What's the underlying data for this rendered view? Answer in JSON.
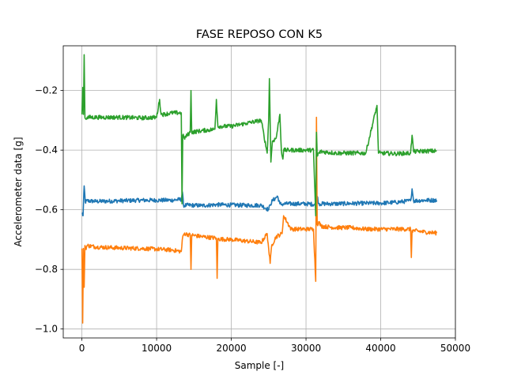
{
  "chart_data": {
    "type": "line",
    "title": "FASE REPOSO CON K5",
    "xlabel": "Sample [-]",
    "ylabel": "Accelerometer data [g]",
    "xlim": [
      -2500,
      50000
    ],
    "ylim": [
      -1.03,
      -0.05
    ],
    "grid": true,
    "x_ticks": [
      0,
      10000,
      20000,
      30000,
      40000,
      50000
    ],
    "x_tick_labels": [
      "0",
      "10000",
      "20000",
      "30000",
      "40000",
      "50000"
    ],
    "y_ticks": [
      -1.0,
      -0.8,
      -0.6,
      -0.4,
      -0.2
    ],
    "y_tick_labels": [
      "−1.0",
      "−0.8",
      "−0.6",
      "−0.4",
      "−0.2"
    ],
    "series": [
      {
        "color": "#1f77b4",
        "x": [
          0,
          150,
          300,
          450,
          600,
          2000,
          5000,
          8000,
          10000,
          12000,
          13300,
          13450,
          13600,
          14000,
          15000,
          16000,
          18000,
          20000,
          22000,
          24000,
          25000,
          25200,
          25500,
          26200,
          26500,
          26800,
          27000,
          30000,
          31300,
          31500,
          31700,
          34000,
          38000,
          40000,
          42000,
          44000,
          44200,
          44400,
          46000,
          47500
        ],
        "y": [
          -0.61,
          -0.62,
          -0.52,
          -0.575,
          -0.57,
          -0.572,
          -0.57,
          -0.568,
          -0.568,
          -0.568,
          -0.565,
          -0.54,
          -0.585,
          -0.585,
          -0.585,
          -0.586,
          -0.583,
          -0.584,
          -0.585,
          -0.585,
          -0.6,
          -0.583,
          -0.57,
          -0.555,
          -0.58,
          -0.582,
          -0.58,
          -0.58,
          -0.582,
          -0.555,
          -0.58,
          -0.58,
          -0.578,
          -0.578,
          -0.575,
          -0.57,
          -0.53,
          -0.57,
          -0.568,
          -0.568
        ]
      },
      {
        "color": "#ff7f0e",
        "x": [
          0,
          100,
          200,
          300,
          400,
          500,
          700,
          2000,
          5000,
          8000,
          10000,
          12000,
          13300,
          13500,
          13700,
          14500,
          14600,
          14700,
          16000,
          18000,
          18100,
          18200,
          20000,
          22000,
          24000,
          24800,
          25000,
          25200,
          25400,
          26000,
          26800,
          27000,
          28000,
          30000,
          31000,
          31300,
          31400,
          31500,
          31700,
          32000,
          34000,
          36000,
          38000,
          40000,
          42000,
          44000,
          44100,
          44200,
          44400,
          46000,
          47500
        ],
        "y": [
          -0.73,
          -0.98,
          -0.73,
          -0.86,
          -0.72,
          -0.73,
          -0.72,
          -0.725,
          -0.728,
          -0.73,
          -0.732,
          -0.735,
          -0.74,
          -0.69,
          -0.68,
          -0.685,
          -0.8,
          -0.685,
          -0.69,
          -0.695,
          -0.83,
          -0.698,
          -0.7,
          -0.705,
          -0.71,
          -0.68,
          -0.73,
          -0.78,
          -0.72,
          -0.69,
          -0.68,
          -0.62,
          -0.665,
          -0.665,
          -0.665,
          -0.84,
          -0.29,
          -0.65,
          -0.64,
          -0.655,
          -0.66,
          -0.66,
          -0.665,
          -0.665,
          -0.665,
          -0.665,
          -0.76,
          -0.67,
          -0.67,
          -0.675,
          -0.678
        ]
      },
      {
        "color": "#2ca02c",
        "x": [
          0,
          100,
          200,
          300,
          400,
          500,
          700,
          2000,
          5000,
          8000,
          10000,
          10400,
          10600,
          11000,
          12000,
          13300,
          13400,
          13500,
          13700,
          14500,
          14600,
          14700,
          16000,
          17800,
          18000,
          18200,
          20000,
          22000,
          24000,
          24800,
          25000,
          25100,
          25300,
          25500,
          26000,
          26500,
          26700,
          26900,
          27000,
          28000,
          30000,
          31000,
          31300,
          31400,
          31500,
          31700,
          32000,
          34000,
          36000,
          38000,
          39500,
          39700,
          40000,
          42000,
          44000,
          44200,
          44400,
          46000,
          47500
        ],
        "y": [
          -0.28,
          -0.19,
          -0.28,
          -0.08,
          -0.29,
          -0.295,
          -0.29,
          -0.29,
          -0.29,
          -0.292,
          -0.29,
          -0.23,
          -0.28,
          -0.28,
          -0.275,
          -0.275,
          -0.58,
          -0.35,
          -0.36,
          -0.34,
          -0.2,
          -0.34,
          -0.335,
          -0.33,
          -0.23,
          -0.32,
          -0.32,
          -0.31,
          -0.3,
          -0.41,
          -0.3,
          -0.16,
          -0.44,
          -0.37,
          -0.36,
          -0.28,
          -0.4,
          -0.43,
          -0.4,
          -0.4,
          -0.4,
          -0.4,
          -0.62,
          -0.34,
          -0.42,
          -0.41,
          -0.405,
          -0.41,
          -0.41,
          -0.41,
          -0.25,
          -0.41,
          -0.41,
          -0.412,
          -0.41,
          -0.35,
          -0.405,
          -0.403,
          -0.403
        ]
      }
    ]
  }
}
